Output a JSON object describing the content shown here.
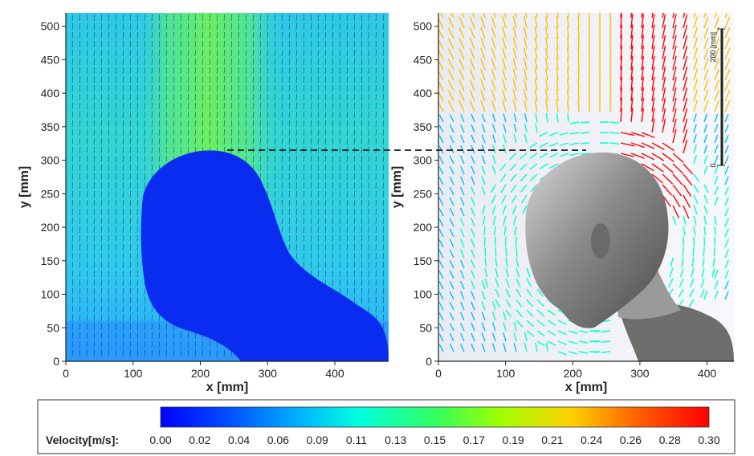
{
  "chart_data": [
    {
      "type": "heatmap",
      "panel": "left",
      "xlabel": "x [mm]",
      "ylabel": "y [mm]",
      "xlim": [
        0,
        480
      ],
      "ylim": [
        0,
        520
      ],
      "xticks": [
        0,
        100,
        200,
        300,
        400
      ],
      "yticks": [
        0,
        50,
        100,
        150,
        200,
        250,
        300,
        350,
        400,
        450,
        500
      ],
      "background_velocity": 0.1,
      "plume_velocity": 0.16,
      "body_velocity": 0.01,
      "vector_field": "upward",
      "reference_line_y": 315
    },
    {
      "type": "scatter",
      "panel": "right",
      "xlabel": "x [mm]",
      "ylabel": "y [mm]",
      "xlim": [
        0,
        440
      ],
      "ylim": [
        0,
        520
      ],
      "xticks": [
        0,
        100,
        200,
        300,
        400
      ],
      "yticks": [
        0,
        50,
        100,
        150,
        200,
        250,
        300,
        350,
        400,
        450,
        500
      ],
      "scale_bar_label": "200 [mm]",
      "scale_bar_zero": "0",
      "reference_line_y": 315,
      "peak_velocity": 0.3
    }
  ],
  "colorbar": {
    "title": "Velocity[m/s]:",
    "labels": [
      "0.00",
      "0.02",
      "0.04",
      "0.06",
      "0.09",
      "0.11",
      "0.13",
      "0.15",
      "0.17",
      "0.19",
      "0.21",
      "0.24",
      "0.26",
      "0.28",
      "0.30"
    ],
    "colors": [
      "#0000ff",
      "#0060ff",
      "#00c0ff",
      "#00ffd0",
      "#40ff40",
      "#c0ff00",
      "#ffc000",
      "#ff4000",
      "#ff0000"
    ],
    "min": 0.0,
    "max": 0.3
  }
}
